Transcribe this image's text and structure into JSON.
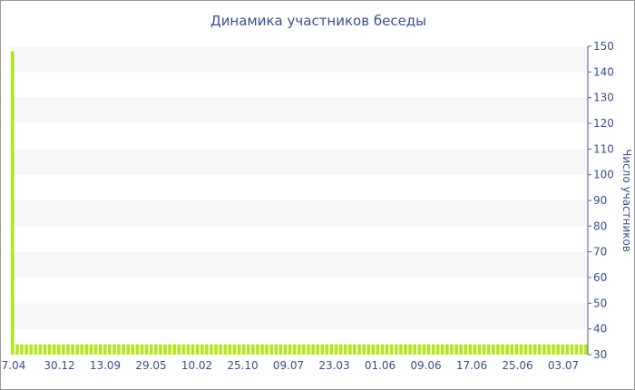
{
  "chart_data": {
    "type": "bar",
    "title": "Динамика участников беседы",
    "ylabel": "Число участников",
    "xlabel": "",
    "ylim": [
      30,
      150
    ],
    "yticks": [
      30,
      40,
      50,
      60,
      70,
      80,
      90,
      100,
      110,
      120,
      130,
      140,
      150
    ],
    "x_tick_labels": [
      "7.04",
      "30.12",
      "13.09",
      "29.05",
      "10.02",
      "25.10",
      "09.07",
      "23.03",
      "01.06",
      "09.06",
      "17.06",
      "25.06",
      "03.07"
    ],
    "grid": true,
    "y_axis_side": "right",
    "bar_color": "#b4e61e",
    "band_color": "#f6f6f6",
    "text_color": "#3a4f8c",
    "series": [
      {
        "values": [
          148,
          34,
          34,
          34,
          34,
          34,
          34,
          34,
          34,
          34,
          34,
          34,
          34,
          34,
          34,
          34,
          34,
          34,
          34,
          34,
          34,
          34,
          34,
          34,
          34,
          34,
          34,
          34,
          34,
          34,
          34,
          34,
          34,
          34,
          34,
          34,
          34,
          34,
          34,
          34,
          34,
          34,
          34,
          34,
          34,
          34,
          34,
          34,
          34,
          34,
          34,
          34,
          34,
          34,
          34,
          34,
          34,
          34,
          34,
          34,
          34,
          34,
          34,
          34,
          34,
          34,
          34,
          34,
          34,
          34,
          34,
          34,
          34,
          34,
          34,
          34,
          34,
          34,
          34,
          34,
          34,
          34,
          34,
          34,
          34,
          34,
          34,
          34,
          34,
          34,
          34,
          34,
          34,
          34,
          34,
          34,
          34,
          34,
          34,
          34,
          34,
          34,
          34,
          34,
          34,
          34,
          34,
          34,
          34,
          34,
          34,
          34,
          34,
          34,
          34,
          34,
          34,
          34,
          34,
          34,
          34,
          34,
          34,
          34,
          34
        ]
      }
    ]
  }
}
